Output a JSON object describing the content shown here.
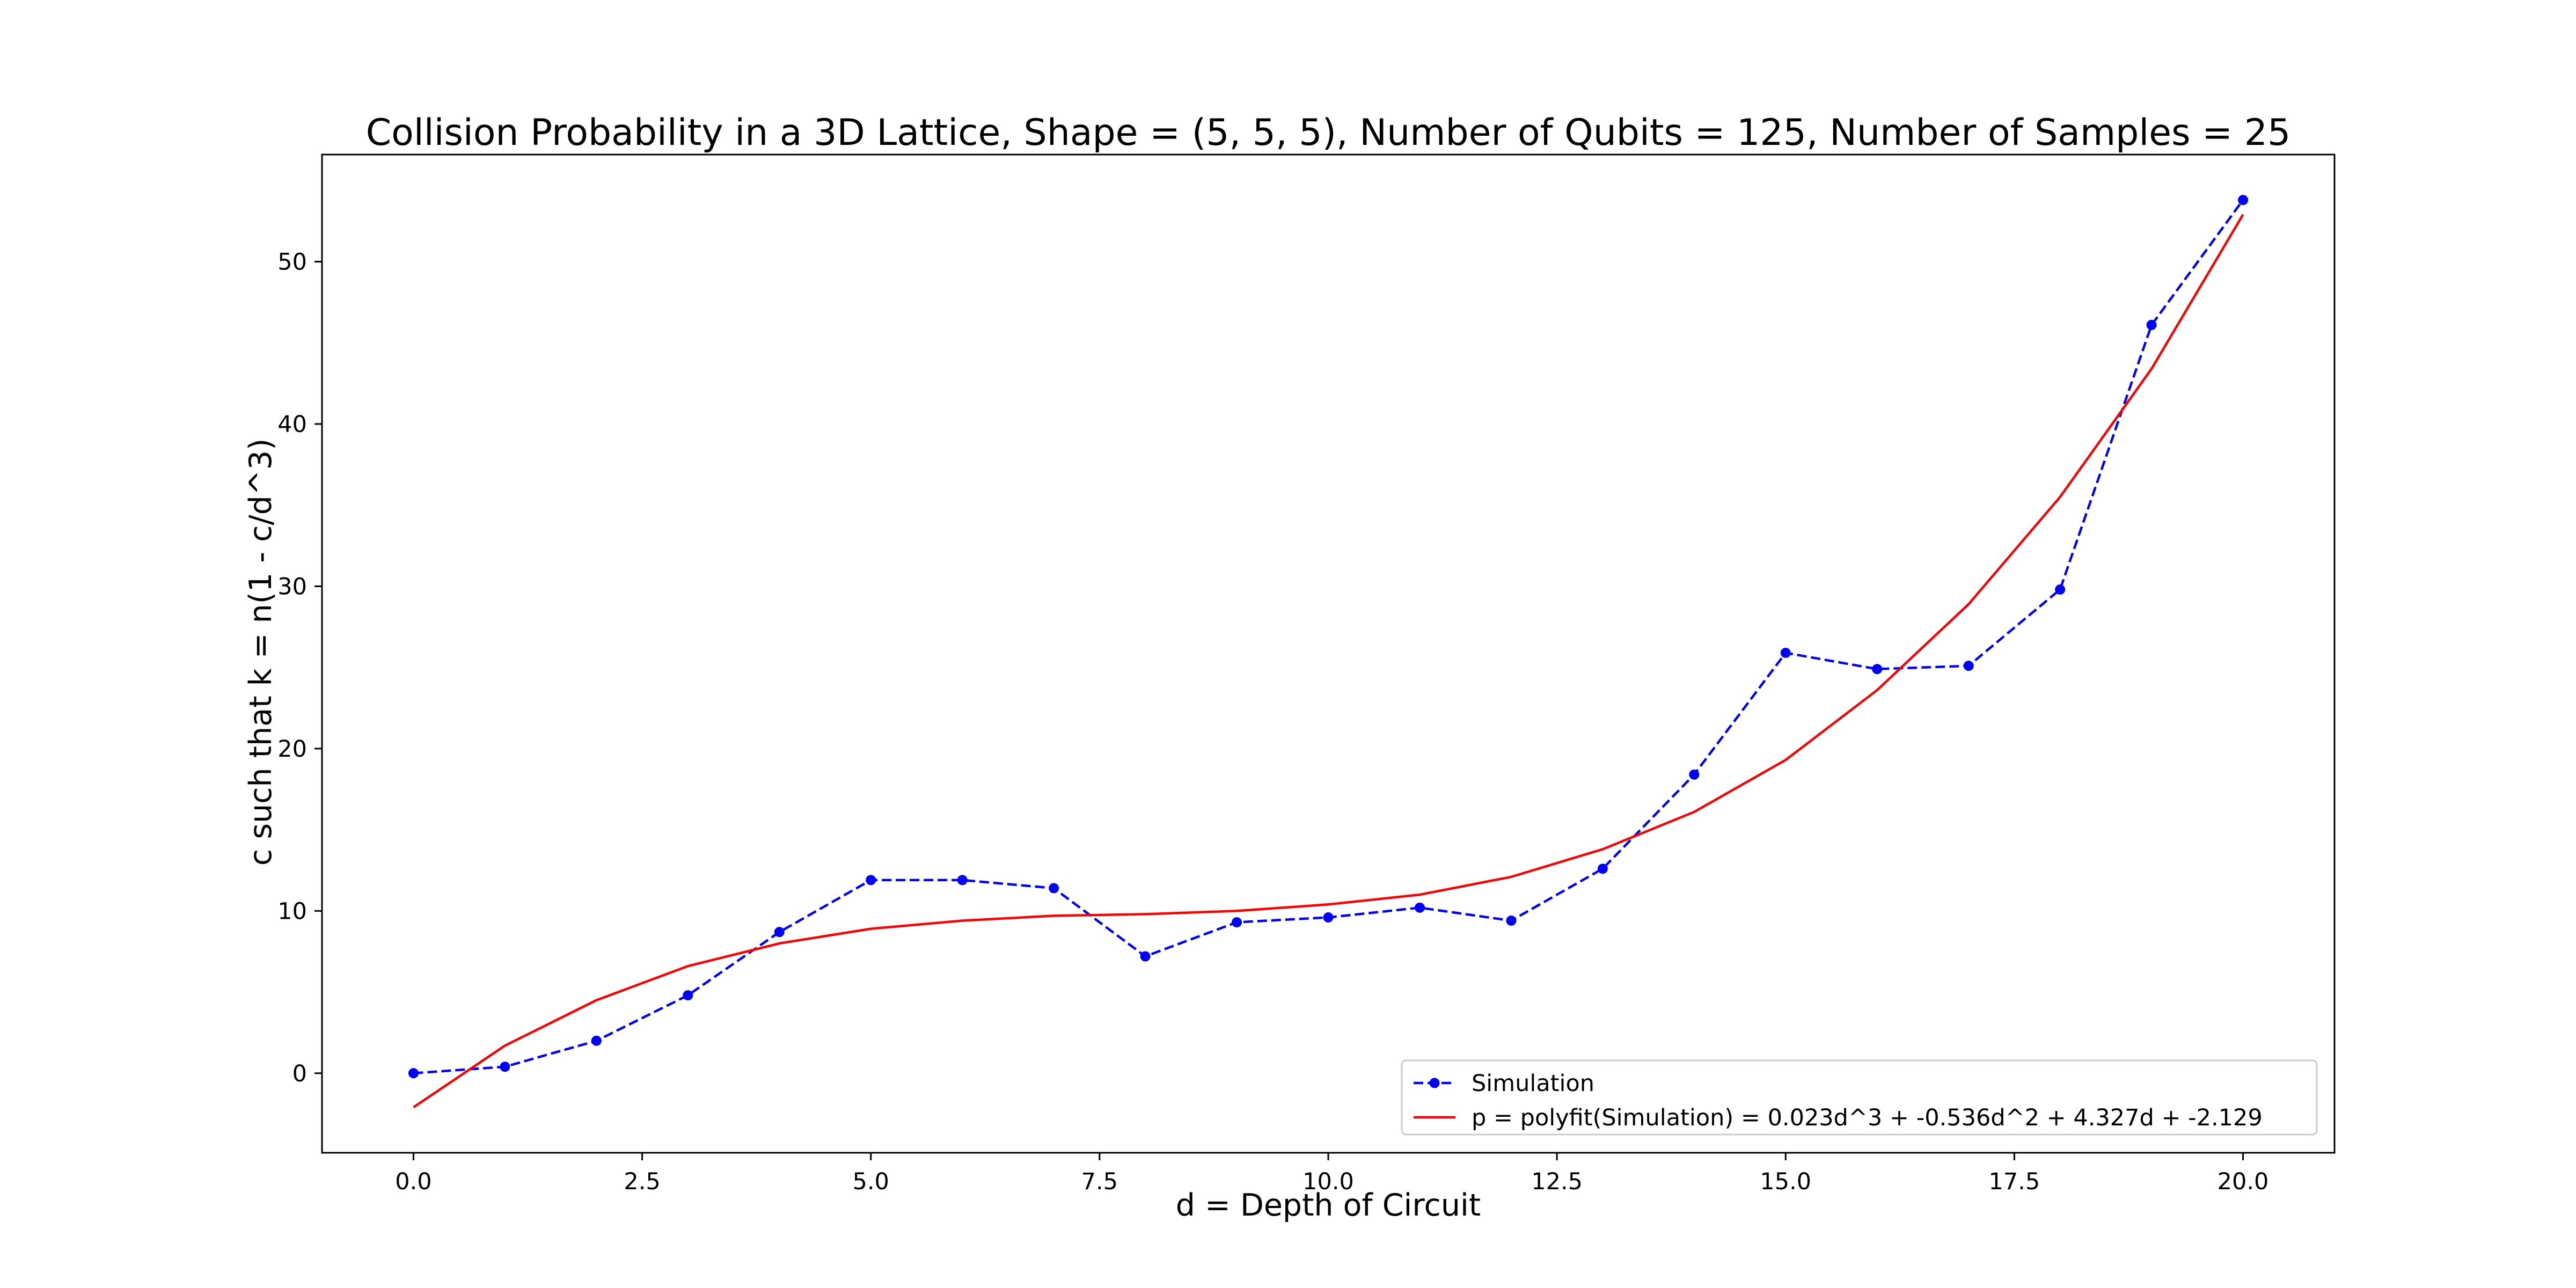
{
  "chart_data": {
    "type": "line",
    "title": "Collision Probability in a 3D Lattice, Shape = (5, 5, 5), Number of Qubits = 125, Number of Samples = 25",
    "xlabel": "d = Depth of Circuit",
    "ylabel": "c such that k = n(1 - c/d^3)",
    "xlim": [
      -1.0,
      21.0
    ],
    "ylim": [
      -4.9,
      56.6
    ],
    "xticks": [
      0.0,
      2.5,
      5.0,
      7.5,
      10.0,
      12.5,
      15.0,
      17.5,
      20.0
    ],
    "xtick_labels": [
      "0.0",
      "2.5",
      "5.0",
      "7.5",
      "10.0",
      "12.5",
      "15.0",
      "17.5",
      "20.0"
    ],
    "yticks": [
      0,
      10,
      20,
      30,
      40,
      50
    ],
    "ytick_labels": [
      "0",
      "10",
      "20",
      "30",
      "40",
      "50"
    ],
    "grid": false,
    "legend_position": "lower-right",
    "series": [
      {
        "name": "Simulation",
        "color": "#0000ff",
        "style": "dashed",
        "marker": "circle",
        "x": [
          0,
          1,
          2,
          3,
          4,
          5,
          6,
          7,
          8,
          9,
          10,
          11,
          12,
          13,
          14,
          15,
          16,
          17,
          18,
          19,
          20
        ],
        "values": [
          0.0,
          0.4,
          2.0,
          4.8,
          8.7,
          11.9,
          11.9,
          11.4,
          7.2,
          9.3,
          9.6,
          10.2,
          9.4,
          12.6,
          18.4,
          25.9,
          24.9,
          25.1,
          29.8,
          46.1,
          53.8
        ]
      },
      {
        "name": "p = polyfit(Simulation) = 0.023d^3 + -0.536d^2 + 4.327d + -2.129",
        "color": "#ff0000",
        "style": "solid",
        "marker": "none",
        "x": [
          0,
          1,
          2,
          3,
          4,
          5,
          6,
          7,
          8,
          9,
          10,
          11,
          12,
          13,
          14,
          15,
          16,
          17,
          18,
          19,
          20
        ],
        "values": [
          -2.1,
          1.7,
          4.5,
          6.6,
          8.0,
          8.9,
          9.4,
          9.7,
          9.8,
          10.0,
          10.4,
          11.0,
          12.1,
          13.8,
          16.1,
          19.3,
          23.6,
          28.9,
          35.5,
          43.4,
          52.9
        ]
      }
    ]
  }
}
